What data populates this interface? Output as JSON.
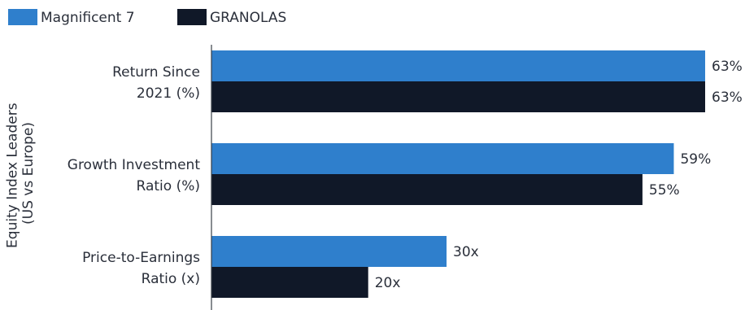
{
  "chart_data": {
    "type": "bar",
    "orientation": "horizontal",
    "ylabel_lines": [
      "Equity Index Leaders",
      "(US vs Europe)"
    ],
    "xlabel": "",
    "categories": [
      {
        "lines": [
          "Return Since",
          "2021 (%)"
        ]
      },
      {
        "lines": [
          "Growth Investment",
          "Ratio (%)"
        ]
      },
      {
        "lines": [
          "Price-to-Earnings",
          "Ratio (x)"
        ]
      }
    ],
    "series": [
      {
        "name": "Magnificent 7",
        "color": "#2f7fcc",
        "values": [
          63,
          59,
          30
        ],
        "labels": [
          "63%",
          "59%",
          "30x"
        ]
      },
      {
        "name": "GRANOLAS",
        "color": "#101828",
        "values": [
          63,
          55,
          20
        ],
        "labels": [
          "63%",
          "55%",
          "20x"
        ]
      }
    ],
    "xlim": [
      0,
      63
    ],
    "legend_position": "top-left",
    "grid": false
  }
}
